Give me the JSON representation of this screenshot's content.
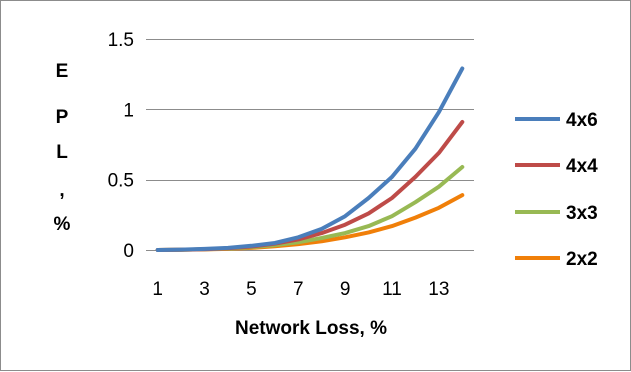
{
  "chart_data": {
    "type": "line",
    "title": "",
    "xlabel": "Network Loss, %",
    "ylabel": "EPL, %",
    "ylabel_vertical_chars": [
      "E",
      "P",
      "L",
      ",",
      "%"
    ],
    "x": [
      1,
      2,
      3,
      4,
      5,
      6,
      7,
      8,
      9,
      10,
      11,
      12,
      13,
      14
    ],
    "x_tick_labels": [
      "1",
      "3",
      "5",
      "7",
      "9",
      "11",
      "13"
    ],
    "y_tick_labels": [
      "0",
      "0.5",
      "1",
      "1.5"
    ],
    "ylim": [
      0,
      1.5
    ],
    "grid": "horizontal",
    "legend_position": "right",
    "series": [
      {
        "name": "4x6",
        "color": "#4a7ebb",
        "values": [
          0,
          0.003,
          0.008,
          0.015,
          0.03,
          0.05,
          0.09,
          0.15,
          0.24,
          0.37,
          0.52,
          0.72,
          0.98,
          1.29
        ]
      },
      {
        "name": "4x4",
        "color": "#be4b48",
        "values": [
          0,
          0.002,
          0.006,
          0.012,
          0.025,
          0.045,
          0.075,
          0.12,
          0.18,
          0.26,
          0.37,
          0.52,
          0.69,
          0.91
        ]
      },
      {
        "name": "3x3",
        "color": "#98b954",
        "values": [
          0,
          0.002,
          0.005,
          0.01,
          0.02,
          0.035,
          0.055,
          0.085,
          0.12,
          0.17,
          0.24,
          0.34,
          0.45,
          0.59
        ]
      },
      {
        "name": "2x2",
        "color": "#f07f09",
        "values": [
          0,
          0.002,
          0.004,
          0.008,
          0.015,
          0.027,
          0.042,
          0.062,
          0.09,
          0.125,
          0.17,
          0.23,
          0.3,
          0.39
        ]
      }
    ]
  }
}
